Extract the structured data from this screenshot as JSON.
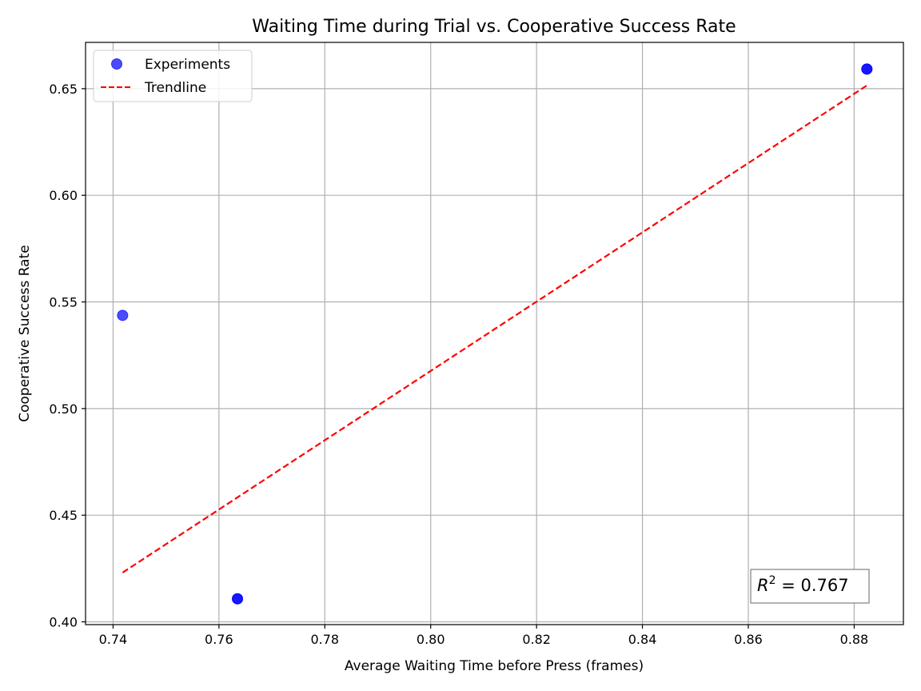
{
  "chart_data": {
    "type": "scatter",
    "title": "Waiting Time during Trial vs. Cooperative Success Rate",
    "xlabel": "Average Waiting Time before Press (frames)",
    "ylabel": "Cooperative Success Rate",
    "xlim": [
      0.7348,
      0.8893
    ],
    "ylim": [
      0.3987,
      0.6717
    ],
    "xticks": [
      0.74,
      0.76,
      0.78,
      0.8,
      0.82,
      0.84,
      0.86,
      0.88
    ],
    "xtick_labels": [
      "0.74",
      "0.76",
      "0.78",
      "0.80",
      "0.82",
      "0.84",
      "0.86",
      "0.88"
    ],
    "yticks": [
      0.4,
      0.45,
      0.5,
      0.55,
      0.6,
      0.65
    ],
    "ytick_labels": [
      "0.40",
      "0.45",
      "0.50",
      "0.55",
      "0.60",
      "0.65"
    ],
    "grid": true,
    "legend_placement": "top-left",
    "series": [
      {
        "name": "Experiments",
        "kind": "points",
        "color": "#0000ff",
        "points": [
          {
            "x": 0.7418,
            "y": 0.5437
          },
          {
            "x": 0.7635,
            "y": 0.4108
          },
          {
            "x": 0.7635,
            "y": 0.4108
          },
          {
            "x": 0.8824,
            "y": 0.6592
          },
          {
            "x": 0.8824,
            "y": 0.6592
          }
        ]
      },
      {
        "name": "Trendline",
        "kind": "dashed-line",
        "color": "#ff0000",
        "points": [
          {
            "x": 0.7418,
            "y": 0.4231
          },
          {
            "x": 0.8824,
            "y": 0.6515
          }
        ]
      }
    ],
    "annotation": {
      "r2_symbol": "R",
      "r2_exponent": "2",
      "r2_value_text": " = 0.767",
      "placement": "bottom-right"
    }
  }
}
